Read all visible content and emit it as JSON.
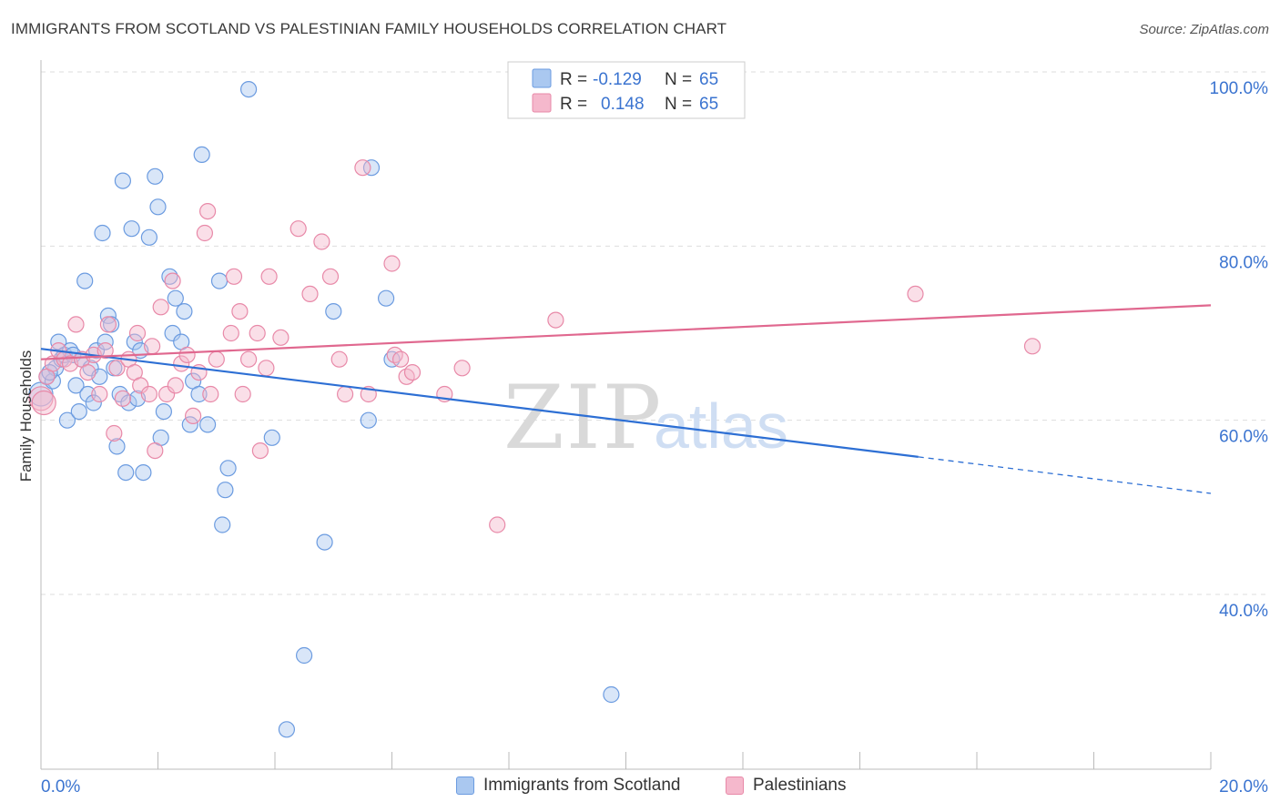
{
  "title": "IMMIGRANTS FROM SCOTLAND VS PALESTINIAN FAMILY HOUSEHOLDS CORRELATION CHART",
  "source": "Source: ZipAtlas.com",
  "watermark": {
    "zip": "ZIP",
    "atlas": "atlas"
  },
  "colors": {
    "blue_fill": "#aac8f0",
    "blue_stroke": "#6b9be0",
    "blue_line": "#2d6fd4",
    "pink_fill": "#f5b8cc",
    "pink_stroke": "#e889a8",
    "pink_line": "#e0688f",
    "axis_label": "#3b74d0",
    "grid": "#dddddd"
  },
  "stats_legend": [
    {
      "series": "Immigrants from Scotland",
      "r_label": "R =",
      "r_value": "-0.129",
      "n_label": "N =",
      "n_value": "65"
    },
    {
      "series": "Palestinians",
      "r_label": "R =",
      "r_value": "0.148",
      "n_label": "N =",
      "n_value": "65"
    }
  ],
  "chart_data": {
    "type": "scatter",
    "title": "IMMIGRANTS FROM SCOTLAND VS PALESTINIAN FAMILY HOUSEHOLDS CORRELATION CHART",
    "xlabel": "",
    "ylabel": "Family Households",
    "xlim": [
      0,
      20
    ],
    "ylim": [
      20,
      102
    ],
    "x_tick_labels": [
      "0.0%",
      "20.0%"
    ],
    "y_ticks": [
      {
        "value": 100,
        "label": "100.0%"
      },
      {
        "value": 80,
        "label": "80.0%"
      },
      {
        "value": 60,
        "label": "60.0%"
      },
      {
        "value": 40,
        "label": "40.0%"
      }
    ],
    "grid": true,
    "legend_position": "bottom",
    "series": [
      {
        "name": "Immigrants from Scotland",
        "color": "#6b9be0",
        "points": [
          [
            0.0,
            63.0
          ],
          [
            0.1,
            65.0
          ],
          [
            0.2,
            64.5
          ],
          [
            0.25,
            66.0
          ],
          [
            0.3,
            69.0
          ],
          [
            0.35,
            67.0
          ],
          [
            0.4,
            67.5
          ],
          [
            0.45,
            60.0
          ],
          [
            0.5,
            68.0
          ],
          [
            0.55,
            67.5
          ],
          [
            0.6,
            64.0
          ],
          [
            0.65,
            61.0
          ],
          [
            0.7,
            67.0
          ],
          [
            0.75,
            76.0
          ],
          [
            0.8,
            63.0
          ],
          [
            0.85,
            66.0
          ],
          [
            0.9,
            62.0
          ],
          [
            0.95,
            68.0
          ],
          [
            1.0,
            65.0
          ],
          [
            1.05,
            81.5
          ],
          [
            1.1,
            69.0
          ],
          [
            1.15,
            72.0
          ],
          [
            1.2,
            71.0
          ],
          [
            1.25,
            66.0
          ],
          [
            1.3,
            57.0
          ],
          [
            1.35,
            63.0
          ],
          [
            1.4,
            87.5
          ],
          [
            1.45,
            54.0
          ],
          [
            1.5,
            62.0
          ],
          [
            1.55,
            82.0
          ],
          [
            1.6,
            69.0
          ],
          [
            1.65,
            62.5
          ],
          [
            1.7,
            68.0
          ],
          [
            1.75,
            54.0
          ],
          [
            1.85,
            81.0
          ],
          [
            1.95,
            88.0
          ],
          [
            2.0,
            84.5
          ],
          [
            2.05,
            58.0
          ],
          [
            2.1,
            61.0
          ],
          [
            2.2,
            76.5
          ],
          [
            2.25,
            70.0
          ],
          [
            2.3,
            74.0
          ],
          [
            2.4,
            69.0
          ],
          [
            2.45,
            72.5
          ],
          [
            2.55,
            59.5
          ],
          [
            2.6,
            64.5
          ],
          [
            2.7,
            63.0
          ],
          [
            2.75,
            90.5
          ],
          [
            2.85,
            59.5
          ],
          [
            3.1,
            48.0
          ],
          [
            3.15,
            52.0
          ],
          [
            3.2,
            54.5
          ],
          [
            3.05,
            76.0
          ],
          [
            3.55,
            98.0
          ],
          [
            3.95,
            58.0
          ],
          [
            4.2,
            24.5
          ],
          [
            4.5,
            33.0
          ],
          [
            4.85,
            46.0
          ],
          [
            5.0,
            72.5
          ],
          [
            5.6,
            60.0
          ],
          [
            5.65,
            89.0
          ],
          [
            5.9,
            74.0
          ],
          [
            6.0,
            67.0
          ],
          [
            9.75,
            28.5
          ],
          [
            0.15,
            65.5
          ]
        ]
      },
      {
        "name": "Palestinians",
        "color": "#e889a8",
        "points": [
          [
            0.0,
            62.5
          ],
          [
            0.05,
            62.0
          ],
          [
            0.1,
            65.0
          ],
          [
            0.2,
            66.5
          ],
          [
            0.3,
            68.0
          ],
          [
            0.4,
            67.0
          ],
          [
            0.5,
            66.5
          ],
          [
            0.6,
            71.0
          ],
          [
            0.7,
            67.0
          ],
          [
            0.8,
            65.5
          ],
          [
            0.9,
            67.5
          ],
          [
            1.0,
            63.0
          ],
          [
            1.1,
            68.0
          ],
          [
            1.15,
            71.0
          ],
          [
            1.25,
            58.5
          ],
          [
            1.3,
            66.0
          ],
          [
            1.4,
            62.5
          ],
          [
            1.5,
            67.0
          ],
          [
            1.6,
            65.5
          ],
          [
            1.65,
            70.0
          ],
          [
            1.7,
            64.0
          ],
          [
            1.85,
            63.0
          ],
          [
            1.9,
            68.5
          ],
          [
            1.95,
            56.5
          ],
          [
            2.05,
            73.0
          ],
          [
            2.15,
            63.0
          ],
          [
            2.25,
            76.0
          ],
          [
            2.3,
            64.0
          ],
          [
            2.4,
            66.5
          ],
          [
            2.5,
            67.5
          ],
          [
            2.6,
            60.5
          ],
          [
            2.7,
            65.5
          ],
          [
            2.8,
            81.5
          ],
          [
            2.85,
            84.0
          ],
          [
            2.9,
            63.0
          ],
          [
            3.0,
            67.0
          ],
          [
            3.25,
            70.0
          ],
          [
            3.3,
            76.5
          ],
          [
            3.4,
            72.5
          ],
          [
            3.45,
            63.0
          ],
          [
            3.55,
            67.0
          ],
          [
            3.7,
            70.0
          ],
          [
            3.75,
            56.5
          ],
          [
            3.85,
            66.0
          ],
          [
            3.9,
            76.5
          ],
          [
            4.1,
            69.5
          ],
          [
            4.4,
            82.0
          ],
          [
            4.6,
            74.5
          ],
          [
            4.8,
            80.5
          ],
          [
            4.95,
            76.5
          ],
          [
            5.1,
            67.0
          ],
          [
            5.2,
            63.0
          ],
          [
            5.5,
            89.0
          ],
          [
            5.6,
            63.0
          ],
          [
            6.0,
            78.0
          ],
          [
            6.05,
            67.5
          ],
          [
            6.15,
            67.0
          ],
          [
            6.25,
            65.0
          ],
          [
            6.35,
            65.5
          ],
          [
            6.9,
            63.0
          ],
          [
            7.2,
            66.0
          ],
          [
            7.8,
            48.0
          ],
          [
            8.8,
            71.5
          ],
          [
            14.95,
            74.5
          ],
          [
            16.95,
            68.5
          ]
        ]
      }
    ],
    "trend_lines": [
      {
        "series": "Immigrants from Scotland",
        "x_start": 0,
        "y_start": 68.2,
        "x_end": 15.0,
        "y_end": 55.8,
        "x_dash_end": 20.0,
        "y_dash_end": 51.6
      },
      {
        "series": "Palestinians",
        "x_start": 0,
        "y_start": 67.0,
        "x_end": 20.0,
        "y_end": 73.2
      }
    ]
  }
}
